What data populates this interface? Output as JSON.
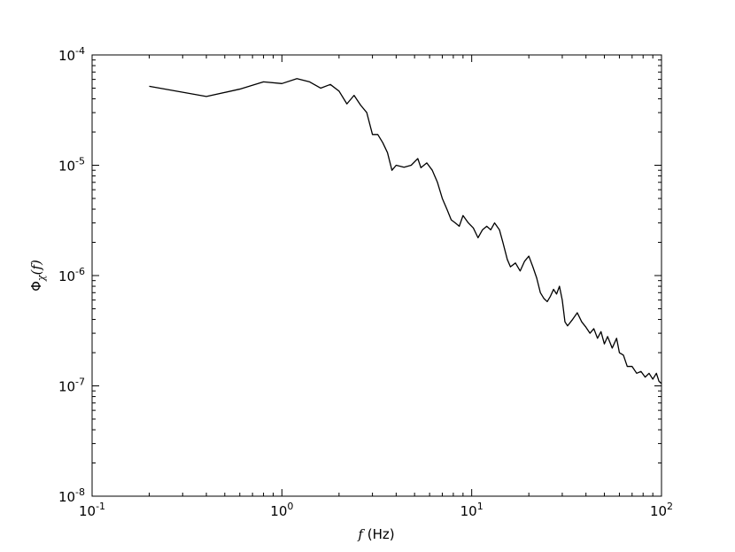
{
  "chart_data": {
    "type": "line",
    "title": "",
    "xlabel": {
      "symbol": "f",
      "text": "(Hz)"
    },
    "ylabel": {
      "phi": "Φ",
      "sub": "χ",
      "arg": "(f)"
    },
    "x_scale": "log",
    "y_scale": "log",
    "xlim": [
      0.1,
      100
    ],
    "ylim": [
      1e-08,
      0.0001
    ],
    "grid": false,
    "legend": "none",
    "x_ticks": [
      {
        "base": "10",
        "exp": "-1",
        "value": 0.1
      },
      {
        "base": "10",
        "exp": "0",
        "value": 1
      },
      {
        "base": "10",
        "exp": "1",
        "value": 10
      },
      {
        "base": "10",
        "exp": "2",
        "value": 100
      }
    ],
    "y_ticks": [
      {
        "base": "10",
        "exp": "-8",
        "value": 1e-08
      },
      {
        "base": "10",
        "exp": "-7",
        "value": 1e-07
      },
      {
        "base": "10",
        "exp": "-6",
        "value": 1e-06
      },
      {
        "base": "10",
        "exp": "-5",
        "value": 1e-05
      },
      {
        "base": "10",
        "exp": "-4",
        "value": 0.0001
      }
    ],
    "line_color": "#000000",
    "series": [
      {
        "x": [
          0.2,
          0.4,
          0.6,
          0.8,
          1.0,
          1.2,
          1.4,
          1.6,
          1.8,
          2.0,
          2.2,
          2.4,
          2.6,
          2.8,
          3.0,
          3.2,
          3.4,
          3.6,
          3.8,
          4.0,
          4.4,
          4.8,
          5.2,
          5.4,
          5.8,
          6.2,
          6.6,
          7.0,
          7.4,
          7.8,
          8.2,
          8.6,
          9.0,
          9.6,
          10.2,
          10.8,
          11.4,
          12.0,
          12.6,
          13.2,
          14.0,
          14.6,
          15.4,
          16.0,
          17.0,
          18.0,
          19.0,
          20.0,
          21.0,
          22.0,
          23.0,
          24.0,
          25.0,
          26.0,
          27.0,
          28.0,
          29.0,
          30.0,
          31.0,
          32.0,
          34.0,
          36.0,
          38.0,
          40.0,
          42.0,
          44.0,
          46.0,
          48.0,
          50.0,
          52.0,
          55.0,
          58.0,
          60.0,
          63.0,
          66.0,
          70.0,
          74.0,
          78.0,
          82.0,
          86.0,
          90.0,
          94.0,
          97.0,
          100.0
        ],
        "y": [
          5.2e-05,
          4.2e-05,
          4.9e-05,
          5.7e-05,
          5.5e-05,
          6.1e-05,
          5.7e-05,
          5e-05,
          5.4e-05,
          4.7e-05,
          3.6e-05,
          4.3e-05,
          3.5e-05,
          3e-05,
          1.9e-05,
          1.9e-05,
          1.6e-05,
          1.3e-05,
          9e-06,
          1e-05,
          9.6e-06,
          1e-05,
          1.15e-05,
          9.5e-06,
          1.05e-05,
          9e-06,
          7e-06,
          5e-06,
          4e-06,
          3.2e-06,
          3e-06,
          2.8e-06,
          3.5e-06,
          3e-06,
          2.7e-06,
          2.2e-06,
          2.6e-06,
          2.8e-06,
          2.6e-06,
          3e-06,
          2.6e-06,
          2e-06,
          1.4e-06,
          1.2e-06,
          1.3e-06,
          1.1e-06,
          1.35e-06,
          1.5e-06,
          1.2e-06,
          9.5e-07,
          7e-07,
          6.2e-07,
          5.8e-07,
          6.5e-07,
          7.5e-07,
          6.8e-07,
          8e-07,
          6e-07,
          3.8e-07,
          3.5e-07,
          4e-07,
          4.6e-07,
          3.8e-07,
          3.4e-07,
          3e-07,
          3.3e-07,
          2.7e-07,
          3.1e-07,
          2.4e-07,
          2.8e-07,
          2.2e-07,
          2.7e-07,
          2e-07,
          1.9e-07,
          1.5e-07,
          1.5e-07,
          1.3e-07,
          1.35e-07,
          1.2e-07,
          1.3e-07,
          1.15e-07,
          1.3e-07,
          1.1e-07,
          1.05e-07
        ]
      }
    ]
  }
}
